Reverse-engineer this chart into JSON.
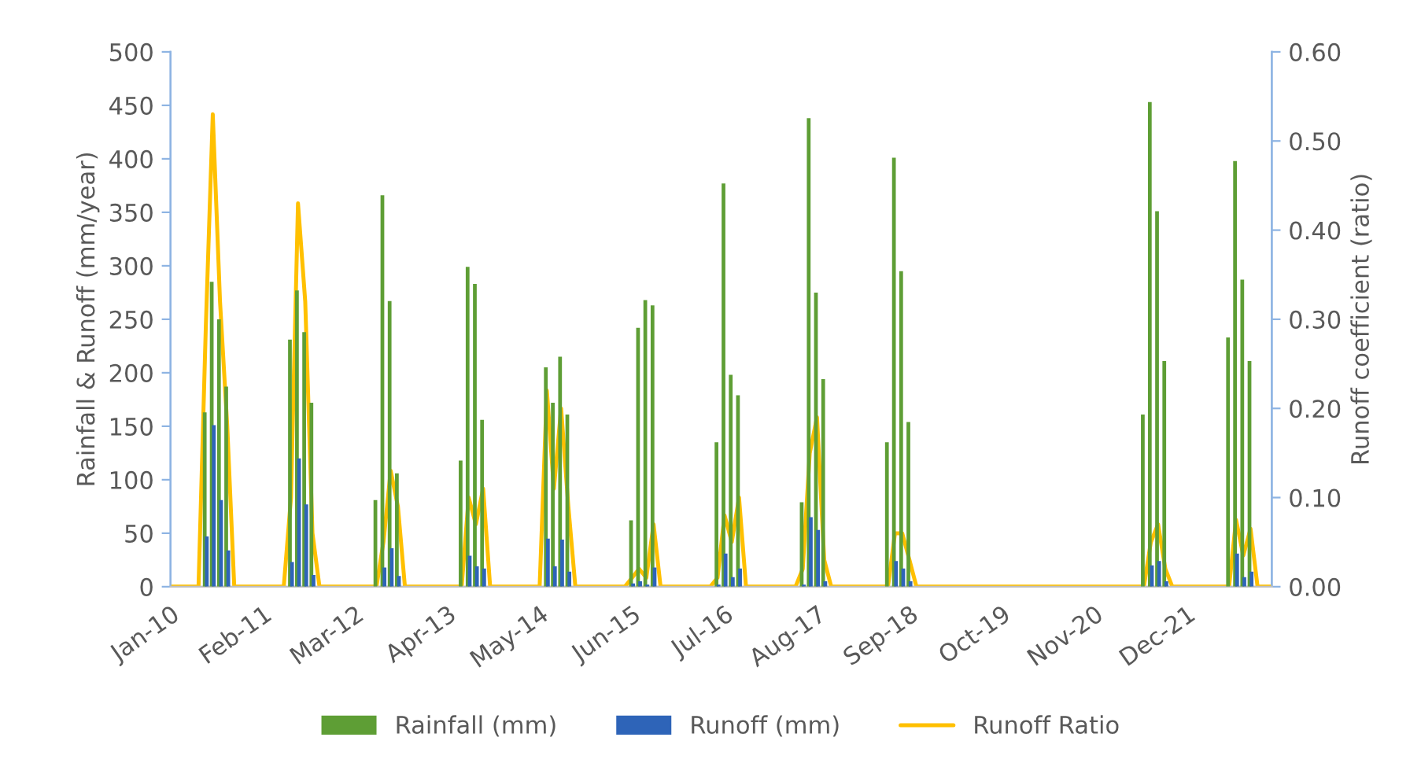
{
  "chart_data": {
    "type": "bar",
    "xlabel": null,
    "ylabel": "Rainfall & Runoff (mm/year)",
    "y2label": "Runoff coefficient (ratio)",
    "xlim": [
      "2010-01",
      "2022-12"
    ],
    "xticks": [
      {
        "value": "2010-01",
        "label": "Jan-10"
      },
      {
        "value": "2011-02",
        "label": "Feb-11"
      },
      {
        "value": "2012-03",
        "label": "Mar-12"
      },
      {
        "value": "2013-04",
        "label": "Apr-13"
      },
      {
        "value": "2014-05",
        "label": "May-14"
      },
      {
        "value": "2015-06",
        "label": "Jun-15"
      },
      {
        "value": "2016-07",
        "label": "Jul-16"
      },
      {
        "value": "2017-08",
        "label": "Aug-17"
      },
      {
        "value": "2018-09",
        "label": "Sep-18"
      },
      {
        "value": "2019-10",
        "label": "Oct-19"
      },
      {
        "value": "2020-11",
        "label": "Nov-20"
      },
      {
        "value": "2021-12",
        "label": "Dec-21"
      }
    ],
    "ylim": [
      0,
      500
    ],
    "yticks": [
      0,
      50,
      100,
      150,
      200,
      250,
      300,
      350,
      400,
      450,
      500
    ],
    "y2lim": [
      0,
      0.6
    ],
    "y2ticks": [
      {
        "value": 0,
        "label": "0.00"
      },
      {
        "value": 0.1,
        "label": "0.10"
      },
      {
        "value": 0.2,
        "label": "0.20"
      },
      {
        "value": 0.3,
        "label": "0.30"
      },
      {
        "value": 0.4,
        "label": "0.40"
      },
      {
        "value": 0.5,
        "label": "0.50"
      },
      {
        "value": 0.6,
        "label": "0.60"
      }
    ],
    "grid": false,
    "legend": "bottom",
    "series": [
      {
        "name": "Rainfall (mm)",
        "color": "#5e9e35",
        "x": [
          "2010-06",
          "2010-07",
          "2010-08",
          "2010-09",
          "2011-06",
          "2011-07",
          "2011-08",
          "2011-09",
          "2012-06",
          "2012-07",
          "2012-08",
          "2012-09",
          "2013-06",
          "2013-07",
          "2013-08",
          "2013-09",
          "2014-06",
          "2014-07",
          "2014-08",
          "2014-09",
          "2015-06",
          "2015-07",
          "2015-08",
          "2015-09",
          "2016-06",
          "2016-07",
          "2016-08",
          "2016-09",
          "2017-06",
          "2017-07",
          "2017-08",
          "2017-09",
          "2018-06",
          "2018-07",
          "2018-08",
          "2018-09",
          "2021-06",
          "2021-07",
          "2021-08",
          "2021-09",
          "2022-06",
          "2022-07",
          "2022-08",
          "2022-09"
        ],
        "values": [
          163,
          285,
          250,
          187,
          231,
          277,
          238,
          172,
          81,
          366,
          267,
          106,
          118,
          299,
          283,
          156,
          205,
          172,
          215,
          161,
          62,
          242,
          268,
          263,
          135,
          377,
          198,
          179,
          79,
          438,
          275,
          194,
          135,
          401,
          295,
          154,
          161,
          453,
          351,
          211,
          233,
          398,
          287,
          211
        ]
      },
      {
        "name": "Runoff (mm)",
        "color": "#2e64b8",
        "x": [
          "2010-06",
          "2010-07",
          "2010-08",
          "2010-09",
          "2011-06",
          "2011-07",
          "2011-08",
          "2011-09",
          "2012-06",
          "2012-07",
          "2012-08",
          "2012-09",
          "2013-06",
          "2013-07",
          "2013-08",
          "2013-09",
          "2014-06",
          "2014-07",
          "2014-08",
          "2014-09",
          "2015-06",
          "2015-07",
          "2015-08",
          "2015-09",
          "2016-06",
          "2016-07",
          "2016-08",
          "2016-09",
          "2017-06",
          "2017-07",
          "2017-08",
          "2017-09",
          "2018-06",
          "2018-07",
          "2018-08",
          "2018-09",
          "2021-06",
          "2021-07",
          "2021-08",
          "2021-09",
          "2022-06",
          "2022-07",
          "2022-08",
          "2022-09"
        ],
        "values": [
          47,
          151,
          81,
          34,
          23,
          120,
          77,
          11,
          0,
          18,
          36,
          10,
          0,
          29,
          19,
          17,
          45,
          19,
          44,
          14,
          3,
          5,
          2,
          18,
          2,
          31,
          9,
          17,
          2,
          65,
          53,
          5,
          0,
          24,
          17,
          5,
          0,
          20,
          24,
          5,
          0,
          31,
          9,
          14
        ]
      },
      {
        "name": "Runoff Ratio",
        "type": "line",
        "color": "#ffc000",
        "axis": "y2",
        "x": [
          "2010-01",
          "2010-05",
          "2010-06",
          "2010-07",
          "2010-08",
          "2010-09",
          "2010-10",
          "2011-05",
          "2011-06",
          "2011-07",
          "2011-08",
          "2011-09",
          "2011-10",
          "2012-05",
          "2012-06",
          "2012-07",
          "2012-08",
          "2012-09",
          "2012-10",
          "2013-05",
          "2013-06",
          "2013-07",
          "2013-08",
          "2013-09",
          "2013-10",
          "2014-05",
          "2014-06",
          "2014-07",
          "2014-08",
          "2014-09",
          "2014-10",
          "2015-05",
          "2015-06",
          "2015-07",
          "2015-08",
          "2015-09",
          "2015-10",
          "2016-05",
          "2016-06",
          "2016-07",
          "2016-08",
          "2016-09",
          "2016-10",
          "2017-05",
          "2017-06",
          "2017-07",
          "2017-08",
          "2017-09",
          "2017-10",
          "2018-05",
          "2018-06",
          "2018-07",
          "2018-08",
          "2018-09",
          "2018-10",
          "2021-05",
          "2021-06",
          "2021-07",
          "2021-08",
          "2021-09",
          "2021-10",
          "2022-05",
          "2022-06",
          "2022-07",
          "2022-08",
          "2022-09",
          "2022-10",
          "2022-12"
        ],
        "values": [
          0,
          0,
          0.29,
          0.53,
          0.32,
          0.18,
          0,
          0,
          0.1,
          0.43,
          0.32,
          0.06,
          0,
          0,
          0,
          0.05,
          0.13,
          0.09,
          0,
          0,
          0,
          0.1,
          0.07,
          0.11,
          0,
          0,
          0.22,
          0.11,
          0.2,
          0.09,
          0,
          0,
          0.01,
          0.02,
          0.01,
          0.07,
          0,
          0,
          0.01,
          0.08,
          0.05,
          0.1,
          0,
          0,
          0.02,
          0.15,
          0.19,
          0.03,
          0,
          0,
          0,
          0.06,
          0.06,
          0.03,
          0,
          0,
          0,
          0.05,
          0.07,
          0.02,
          0,
          0,
          0,
          0.075,
          0.035,
          0.065,
          0,
          0
        ]
      }
    ]
  }
}
